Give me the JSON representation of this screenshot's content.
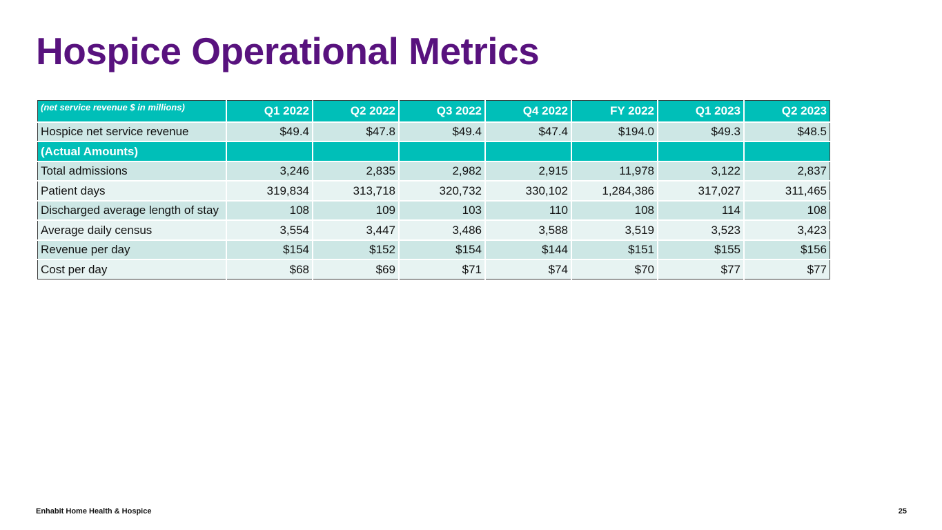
{
  "title": "Hospice Operational Metrics",
  "table": {
    "note": "(net service revenue $ in millions)",
    "columns": [
      "Q1 2022",
      "Q2 2022",
      "Q3 2022",
      "Q4 2022",
      "FY 2022",
      "Q1 2023",
      "Q2 2023"
    ],
    "revenue_row": {
      "label": "Hospice net service revenue",
      "values": [
        "$49.4",
        "$47.8",
        "$49.4",
        "$47.4",
        "$194.0",
        "$49.3",
        "$48.5"
      ]
    },
    "section_label": "(Actual Amounts)",
    "rows": [
      {
        "label": "Total admissions",
        "values": [
          "3,246",
          "2,835",
          "2,982",
          "2,915",
          "11,978",
          "3,122",
          "2,837"
        ]
      },
      {
        "label": "Patient days",
        "values": [
          "319,834",
          "313,718",
          "320,732",
          "330,102",
          "1,284,386",
          "317,027",
          "311,465"
        ]
      },
      {
        "label": "Discharged average length of stay",
        "values": [
          "108",
          "109",
          "103",
          "110",
          "108",
          "114",
          "108"
        ]
      },
      {
        "label": "Average daily census",
        "values": [
          "3,554",
          "3,447",
          "3,486",
          "3,588",
          "3,519",
          "3,523",
          "3,423"
        ]
      },
      {
        "label": "Revenue per day",
        "values": [
          "$154",
          "$152",
          "$154",
          "$144",
          "$151",
          "$155",
          "$156"
        ]
      },
      {
        "label": "Cost per day",
        "values": [
          "$68",
          "$69",
          "$71",
          "$74",
          "$70",
          "$77",
          "$77"
        ]
      }
    ]
  },
  "footer": {
    "company": "Enhabit Home Health & Hospice",
    "page_number": "25"
  },
  "colors": {
    "title": "#58127e",
    "header_teal": "#00bfb8",
    "row_dark": "#cde7e5",
    "row_light": "#e7f3f2"
  }
}
